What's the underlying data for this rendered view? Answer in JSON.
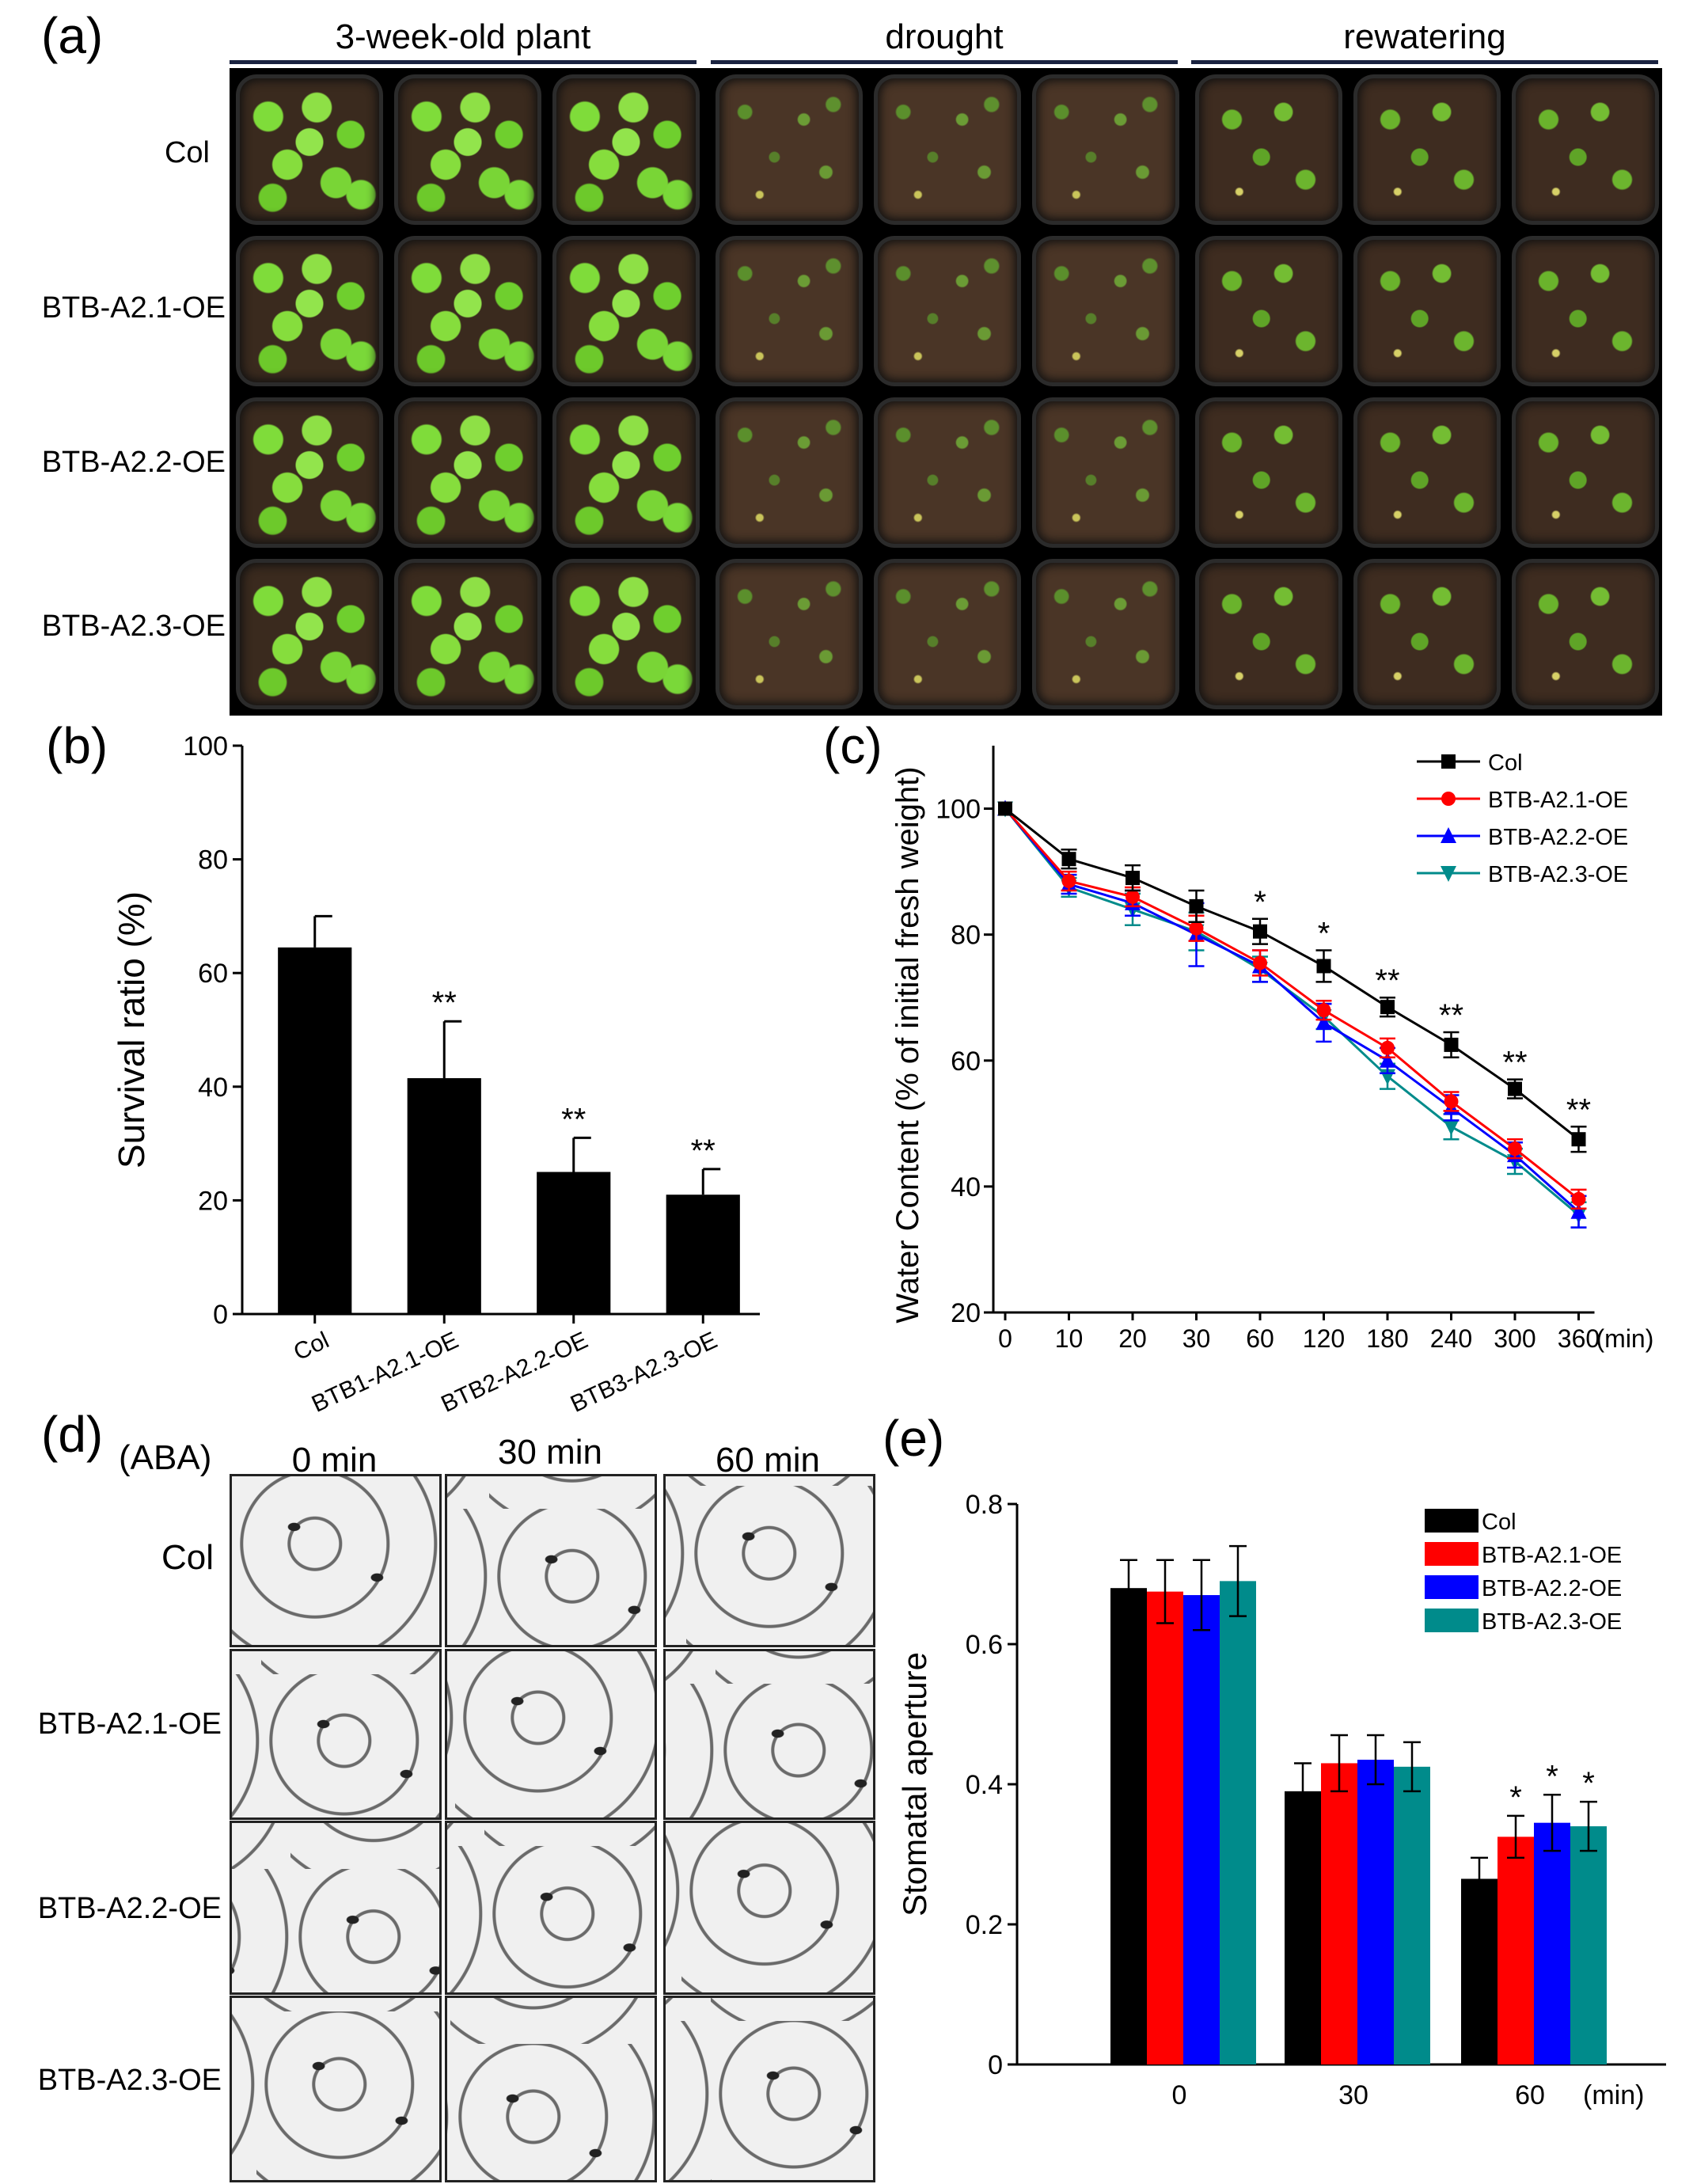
{
  "panel_a": {
    "label": "(a)",
    "column_headers": [
      "3-week-old plant",
      "drought",
      "rewatering"
    ],
    "row_labels": [
      "Col",
      "BTB-A2.1-OE",
      "BTB-A2.2-OE",
      "BTB-A2.3-OE"
    ]
  },
  "panel_d": {
    "label": "(d)",
    "treatment": "(ABA)",
    "column_headers": [
      "0 min",
      "30 min",
      "60 min"
    ],
    "row_labels": [
      "Col",
      "BTB-A2.1-OE",
      "BTB-A2.2-OE",
      "BTB-A2.3-OE"
    ]
  },
  "chart_data": [
    {
      "id": "b",
      "label": "(b)",
      "type": "bar",
      "title": "",
      "xlabel": "",
      "ylabel": "Survival ratio (%)",
      "ylim": [
        0,
        100
      ],
      "yticks": [
        0,
        20,
        40,
        60,
        80,
        100
      ],
      "categories": [
        "Col",
        "BTB1-A2.1-OE",
        "BTB2-A2.2-OE",
        "BTB3-A2.3-OE"
      ],
      "values": [
        64.5,
        41.5,
        25,
        21
      ],
      "errors": [
        5.5,
        10,
        6,
        4.5
      ],
      "annotations": [
        "",
        "**",
        "**",
        "**"
      ],
      "color": "#000000"
    },
    {
      "id": "c",
      "label": "(c)",
      "type": "line",
      "ylabel": "Water Content (% of initial fresh weight)",
      "ylim": [
        20,
        110
      ],
      "yticks": [
        20,
        40,
        60,
        80,
        100
      ],
      "x": [
        "0",
        "10",
        "20",
        "30",
        "60",
        "120",
        "180",
        "240",
        "300",
        "360"
      ],
      "x_unit": "(min)",
      "series": [
        {
          "name": "Col",
          "color": "#000000",
          "marker": "square",
          "values": [
            100,
            92,
            89,
            84.5,
            80.5,
            75,
            68.5,
            62.5,
            55.5,
            47.5
          ],
          "errors": [
            0,
            1.5,
            2,
            2.5,
            2,
            2.5,
            1.5,
            2,
            1.5,
            2
          ]
        },
        {
          "name": "BTB-A2.1-OE",
          "color": "#ff0000",
          "marker": "circle",
          "values": [
            100,
            88.5,
            86,
            81,
            75.5,
            68,
            62,
            53.5,
            46,
            38
          ],
          "errors": [
            0,
            1.5,
            1.5,
            2,
            2,
            1.5,
            1.5,
            1.5,
            1.5,
            1.5
          ]
        },
        {
          "name": "BTB-A2.2-OE",
          "color": "#0000ff",
          "marker": "triangle-up",
          "values": [
            100,
            88,
            85,
            80,
            75,
            66,
            60,
            52.5,
            45,
            36
          ],
          "errors": [
            0,
            1.5,
            2,
            5,
            2.5,
            3,
            2,
            2,
            2,
            2.5
          ]
        },
        {
          "name": "BTB-A2.3-OE",
          "color": "#008b8b",
          "marker": "triangle-down",
          "values": [
            100,
            87.5,
            84,
            80.5,
            74.5,
            67,
            57.5,
            49.5,
            44,
            35.5
          ],
          "errors": [
            0,
            1.5,
            2.5,
            3,
            2,
            2,
            2,
            2,
            2,
            2
          ]
        }
      ],
      "annotations": [
        "",
        "",
        "",
        "",
        "*",
        "*",
        "**",
        "**",
        "**",
        "**"
      ],
      "legend_position": "top-right"
    },
    {
      "id": "e",
      "label": "(e)",
      "type": "bar",
      "ylabel": "Stomatal aperture",
      "ylim": [
        0,
        0.8
      ],
      "yticks": [
        0,
        0.2,
        0.4,
        0.6,
        0.8
      ],
      "categories": [
        "0",
        "30",
        "60"
      ],
      "x_unit": "(min)",
      "series": [
        {
          "name": "Col",
          "color": "#000000",
          "values": [
            0.68,
            0.39,
            0.265
          ],
          "errors": [
            0.04,
            0.04,
            0.03
          ]
        },
        {
          "name": "BTB-A2.1-OE",
          "color": "#ff0000",
          "values": [
            0.675,
            0.43,
            0.325
          ],
          "errors": [
            0.045,
            0.04,
            0.03
          ]
        },
        {
          "name": "BTB-A2.2-OE",
          "color": "#0000ff",
          "values": [
            0.67,
            0.435,
            0.345
          ],
          "errors": [
            0.05,
            0.035,
            0.04
          ]
        },
        {
          "name": "BTB-A2.3-OE",
          "color": "#008b8b",
          "values": [
            0.69,
            0.425,
            0.34
          ],
          "errors": [
            0.05,
            0.035,
            0.035
          ]
        }
      ],
      "annotations_60": [
        "",
        "*",
        "*",
        "*"
      ],
      "legend_position": "top-right"
    }
  ]
}
